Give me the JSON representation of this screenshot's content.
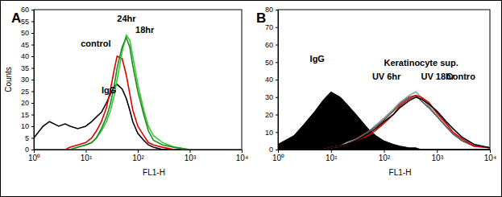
{
  "chart_data": [
    {
      "type": "line",
      "title": "A",
      "x_label": "FL1-H",
      "y_label": "Counts",
      "log": "x",
      "xlim": [
        1,
        10000
      ],
      "xticks": [
        {
          "value": 1,
          "label": "10⁰"
        },
        {
          "value": 10,
          "label": "10¹"
        },
        {
          "value": 100,
          "label": "10²"
        },
        {
          "value": 1000,
          "label": "10³"
        },
        {
          "value": 10000,
          "label": "10⁴"
        }
      ],
      "ylim": [
        0,
        60
      ],
      "yticks": [
        0,
        5,
        10,
        15,
        20,
        25,
        30,
        35,
        40,
        45,
        50,
        55,
        60
      ],
      "x": [
        1,
        1.5,
        2,
        3,
        4,
        5,
        7,
        10,
        13,
        16,
        20,
        25,
        30,
        35,
        40,
        50,
        60,
        70,
        80,
        100,
        130,
        160,
        200,
        300,
        500,
        1000,
        2000,
        5000,
        10000
      ],
      "series": [
        {
          "color": "#000000",
          "values": [
            5,
            10,
            12,
            10,
            11,
            10,
            9,
            10,
            12,
            14,
            16,
            20,
            24,
            27,
            28,
            26,
            22,
            17,
            12,
            7,
            4,
            2,
            1,
            0,
            0,
            0,
            0,
            0,
            0
          ]
        },
        {
          "color": "#e00000",
          "values": [
            0,
            0,
            0,
            0,
            0,
            1,
            2,
            3,
            5,
            8,
            12,
            18,
            26,
            34,
            40,
            39,
            32,
            24,
            17,
            10,
            6,
            3,
            2,
            1,
            0,
            0,
            0,
            0,
            0
          ]
        },
        {
          "color": "#33cc33",
          "values": [
            0,
            0,
            0,
            0,
            0,
            0,
            1,
            2,
            3,
            5,
            8,
            12,
            17,
            23,
            30,
            42,
            49,
            47,
            40,
            28,
            17,
            10,
            6,
            3,
            1,
            0,
            0,
            0,
            0
          ]
        },
        {
          "color": "#228822",
          "values": [
            0,
            0,
            0,
            0,
            0,
            0,
            1,
            2,
            3,
            5,
            9,
            14,
            20,
            27,
            35,
            44,
            48,
            44,
            36,
            25,
            15,
            8,
            4,
            2,
            1,
            0,
            0,
            0,
            0
          ]
        }
      ],
      "annotations": [
        {
          "text": "control",
          "x": 8,
          "y": 44
        },
        {
          "text": "24hr",
          "x": 40,
          "y": 55
        },
        {
          "text": "18hr",
          "x": 90,
          "y": 50
        },
        {
          "text": "IgG",
          "x": 20,
          "y": 24
        }
      ]
    },
    {
      "type": "line",
      "title": "B",
      "x_label": "FL1-H",
      "log": "x",
      "xlim": [
        1,
        10000
      ],
      "xticks": [
        {
          "value": 1,
          "label": "10⁰"
        },
        {
          "value": 10,
          "label": "10¹"
        },
        {
          "value": 100,
          "label": "10²"
        },
        {
          "value": 1000,
          "label": "10³"
        },
        {
          "value": 10000,
          "label": "10⁴"
        }
      ],
      "ylim": [
        0,
        80
      ],
      "yticks": [
        0,
        10,
        20,
        30,
        40,
        50,
        60,
        70,
        80
      ],
      "x": [
        1,
        2,
        3,
        5,
        7,
        10,
        15,
        20,
        30,
        50,
        70,
        100,
        150,
        200,
        300,
        400,
        500,
        700,
        1000,
        1500,
        2000,
        3000,
        5000,
        10000
      ],
      "series": [
        {
          "type": "area",
          "color": "#000000",
          "values": [
            3,
            8,
            14,
            22,
            28,
            33,
            30,
            26,
            20,
            12,
            8,
            5,
            3,
            2,
            1,
            1,
            0,
            0,
            0,
            0,
            0,
            0,
            0,
            0
          ]
        },
        {
          "color": "#999999",
          "values": [
            0,
            0,
            0,
            0,
            0,
            1,
            2,
            4,
            6,
            10,
            14,
            18,
            23,
            27,
            31,
            33,
            30,
            25,
            20,
            14,
            9,
            5,
            2,
            1
          ]
        },
        {
          "color": "#555555",
          "values": [
            0,
            0,
            0,
            0,
            0,
            1,
            2,
            3,
            6,
            10,
            13,
            17,
            22,
            26,
            30,
            31,
            28,
            24,
            19,
            13,
            9,
            5,
            2,
            1
          ]
        },
        {
          "color": "#e00000",
          "values": [
            0,
            0,
            0,
            0,
            0,
            1,
            2,
            3,
            5,
            8,
            11,
            15,
            20,
            25,
            29,
            31,
            30,
            27,
            21,
            15,
            10,
            6,
            2,
            1
          ]
        },
        {
          "color": "#000000",
          "values": [
            0,
            0,
            0,
            0,
            0,
            1,
            2,
            3,
            5,
            9,
            12,
            16,
            20,
            24,
            28,
            30,
            29,
            26,
            22,
            16,
            12,
            7,
            3,
            1
          ]
        }
      ],
      "annotations": [
        {
          "text": "IgG",
          "x": 4,
          "y": 50
        },
        {
          "text": "Keratinocyte sup.",
          "x": 100,
          "y": 48
        },
        {
          "text": "UV 6hr",
          "x": 60,
          "y": 40
        },
        {
          "text": "UV 18hr",
          "x": 500,
          "y": 40
        },
        {
          "text": "Contro",
          "x": 1500,
          "y": 40
        }
      ]
    }
  ]
}
